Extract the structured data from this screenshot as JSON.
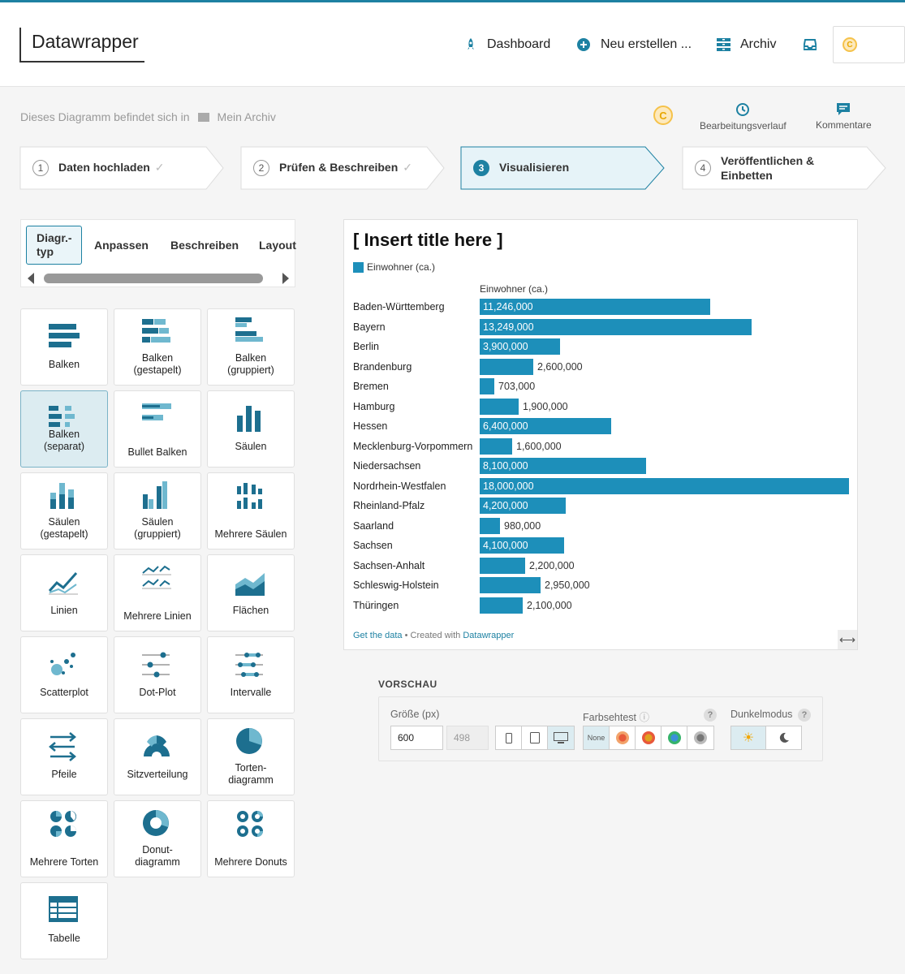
{
  "app": {
    "logo": "Datawrapper"
  },
  "nav": {
    "dashboard": "Dashboard",
    "create": "Neu erstellen ...",
    "archive": "Archiv"
  },
  "credit_symbol": "C",
  "breadcrumb": {
    "prefix": "Dieses Diagramm befindet sich in",
    "folder": "Mein Archiv"
  },
  "tools": {
    "history": "Bearbeitungsverlauf",
    "comments": "Kommentare"
  },
  "steps": [
    {
      "num": "1",
      "label": "Daten hochladen"
    },
    {
      "num": "2",
      "label": "Prüfen & Beschreiben"
    },
    {
      "num": "3",
      "label": "Visualisieren"
    },
    {
      "num": "4",
      "label": "Veröffentlichen & Einbetten"
    }
  ],
  "tabs": [
    "Diagr.-typ",
    "Anpassen",
    "Beschreiben",
    "Layout"
  ],
  "chart_types": [
    "Balken",
    "Balken (gestapelt)",
    "Balken (gruppiert)",
    "Balken (separat)",
    "Bullet Balken",
    "Säulen",
    "Säulen (gestapelt)",
    "Säulen (gruppiert)",
    "Mehrere Säulen",
    "Linien",
    "Mehrere Linien",
    "Flächen",
    "Scatterplot",
    "Dot-Plot",
    "Intervalle",
    "Pfeile",
    "Sitzverteilung",
    "Torten-diagramm",
    "Mehrere Torten",
    "Donut-diagramm",
    "Mehrere Donuts",
    "Tabelle"
  ],
  "chart_data": {
    "type": "bar",
    "title": "[ Insert title here ]",
    "legend": "Einwohner (ca.)",
    "column_header": "Einwohner (ca.)",
    "categories": [
      "Baden-Württemberg",
      "Bayern",
      "Berlin",
      "Brandenburg",
      "Bremen",
      "Hamburg",
      "Hessen",
      "Mecklenburg-Vorpommern",
      "Niedersachsen",
      "Nordrhein-Westfalen",
      "Rheinland-Pfalz",
      "Saarland",
      "Sachsen",
      "Sachsen-Anhalt",
      "Schleswig-Holstein",
      "Thüringen"
    ],
    "values": [
      11246000,
      13249000,
      3900000,
      2600000,
      703000,
      1900000,
      6400000,
      1600000,
      8100000,
      18000000,
      4200000,
      980000,
      4100000,
      2200000,
      2950000,
      2100000
    ],
    "labels": [
      "11,246,000",
      "13,249,000",
      "3,900,000",
      "2,600,000",
      "703,000",
      "1,900,000",
      "6,400,000",
      "1,600,000",
      "8,100,000",
      "18,000,000",
      "4,200,000",
      "980,000",
      "4,100,000",
      "2,200,000",
      "2,950,000",
      "2,100,000"
    ],
    "color": "#1d8fba"
  },
  "footer": {
    "get_data": "Get the data",
    "sep": " • Created with ",
    "brand": "Datawrapper"
  },
  "preview": {
    "title": "VORSCHAU",
    "size_label": "Größe (px)",
    "width": "600",
    "height": "498",
    "colorblind_label": "Farbsehtest",
    "colorblind_none": "None",
    "dark_label": "Dunkelmodus",
    "help": "?"
  }
}
